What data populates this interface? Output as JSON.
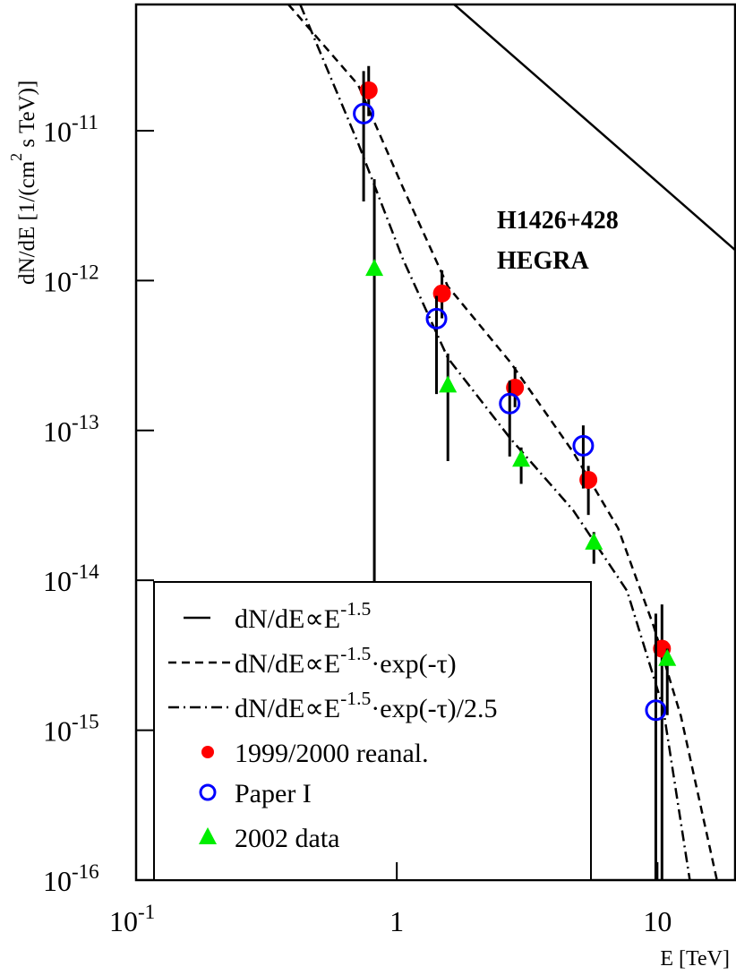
{
  "chart_data": {
    "type": "scatter",
    "log_x": true,
    "log_y": true,
    "xlim": [
      0.1,
      20
    ],
    "ylim": [
      1e-16,
      6.95e-11
    ],
    "xticks": [
      {
        "value": 0.1,
        "label": [
          "10",
          "-1"
        ]
      },
      1,
      10
    ],
    "yticks": [
      {
        "value": 1e-16,
        "label": [
          "10",
          "-16"
        ]
      },
      {
        "value": 1e-15,
        "label": [
          "10",
          "-15"
        ]
      },
      {
        "value": 1e-14,
        "label": [
          "10",
          "-14"
        ]
      },
      {
        "value": 1e-13,
        "label": [
          "10",
          "-13"
        ]
      },
      {
        "value": 1e-12,
        "label": [
          "10",
          "-12"
        ]
      },
      {
        "value": 1e-11,
        "label": [
          "10",
          "-11"
        ]
      }
    ],
    "xlabel": "E [TeV]",
    "ylabel": [
      "dN/dE [1/(cm",
      "2",
      " s TeV)]"
    ],
    "annotations": [
      "H1426+428",
      "HEGRA"
    ],
    "series": [
      {
        "name": [
          "dN/dE∝E",
          "-1.5"
        ],
        "style": "solid",
        "color": "#000000",
        "x": [
          1.66,
          20
        ],
        "values": [
          6.95e-11,
          1.58e-12
        ]
      },
      {
        "name": [
          "dN/dE∝E",
          "-1.5",
          "·exp(-τ)"
        ],
        "style": "dashed",
        "color": "#000000",
        "x": [
          0.384,
          0.711,
          1.057,
          1.57,
          2.73,
          4.75,
          7.06,
          9.68,
          12.3,
          16.9
        ],
        "values": [
          6.95e-11,
          2.02e-11,
          4.15e-12,
          9.14e-13,
          2.84e-13,
          7.16e-14,
          2.23e-14,
          4.91e-15,
          1.24e-15,
          1e-16
        ]
      },
      {
        "name": [
          "dN/dE∝E",
          "-1.5",
          "·exp(-τ)/2.5"
        ],
        "style": "dashdot",
        "color": "#000000",
        "x": [
          0.426,
          0.711,
          1.057,
          1.57,
          2.73,
          4.75,
          7.64,
          10.5,
          13.3
        ],
        "values": [
          6.95e-11,
          8.24e-12,
          1.38e-12,
          3.04e-13,
          8.81e-14,
          2.93e-14,
          8.51e-15,
          1.42e-15,
          1e-16
        ]
      },
      {
        "name": "1999/2000 reanal.",
        "style": "filled-circle",
        "color": "#ff0000",
        "x": [
          0.78,
          1.49,
          2.84,
          5.43,
          10.4
        ],
        "values": [
          1.86e-11,
          8.2e-13,
          1.93e-13,
          4.68e-14,
          3.5e-15
        ],
        "err_low": [
          1.25e-11,
          5.6e-13,
          1.43e-13,
          2.73e-14,
          1e-16
        ],
        "err_high": [
          2.7e-11,
          1.17e-12,
          2.65e-13,
          5.8e-14,
          6.9e-15
        ]
      },
      {
        "name": "Paper I",
        "style": "open-circle",
        "color": "#0000ff",
        "x": [
          0.746,
          1.42,
          2.71,
          5.19,
          9.85
        ],
        "values": [
          1.3e-11,
          5.57e-13,
          1.51e-13,
          7.9e-14,
          1.36e-15
        ],
        "err_low": [
          3.37e-12,
          1.75e-13,
          6.7e-14,
          4.1e-14,
          1e-16
        ],
        "err_high": [
          2.5e-11,
          7.9e-13,
          2.15e-13,
          1.08e-13,
          6e-15
        ]
      },
      {
        "name": "2002 data",
        "style": "triangle",
        "color": "#00ee00",
        "x": [
          0.82,
          1.57,
          3.0,
          5.7,
          10.9
        ],
        "values": [
          1.2e-12,
          2e-13,
          6.4e-14,
          1.79e-14,
          3e-15
        ],
        "err_low": [
          1e-16,
          6.25e-14,
          4.4e-14,
          1.29e-14,
          1.26e-15
        ],
        "err_high": [
          4.75e-12,
          3.26e-13,
          7.7e-14,
          2.1e-14,
          3.5e-15
        ]
      }
    ]
  }
}
